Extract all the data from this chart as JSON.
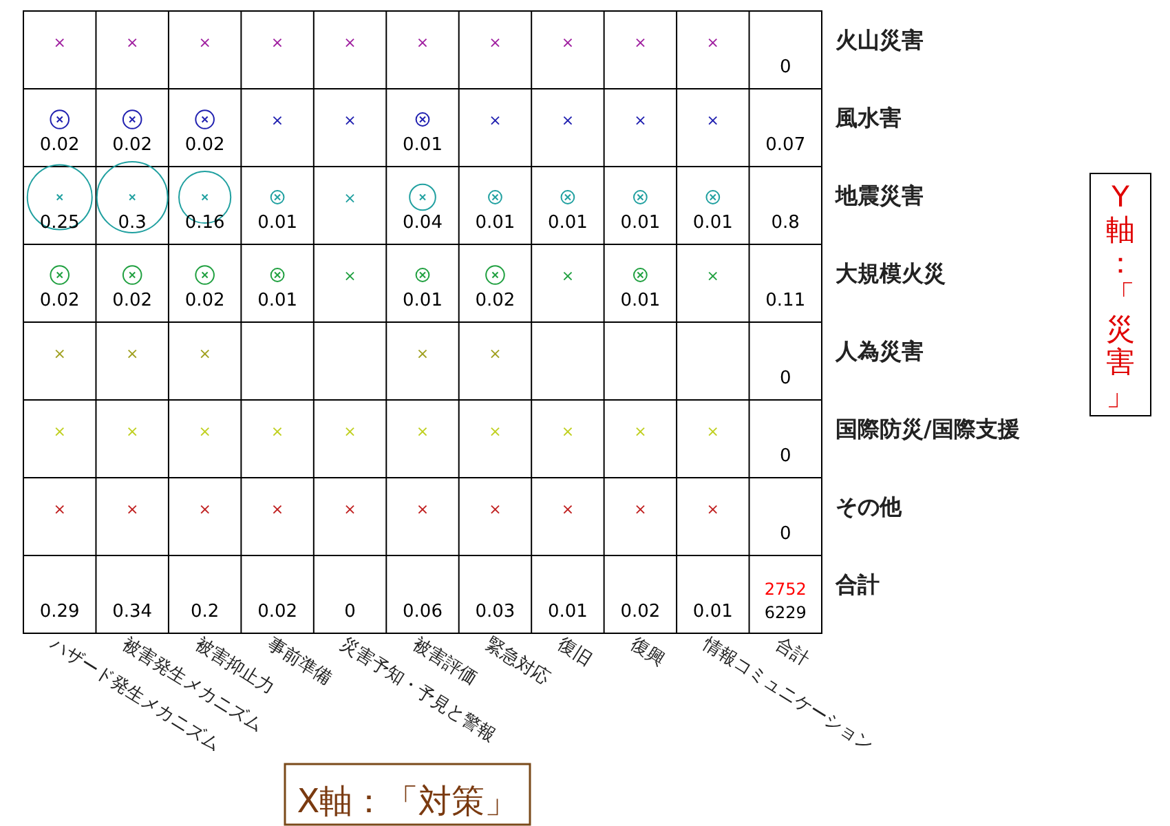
{
  "chart_data": {
    "type": "heatmap",
    "xlabel": "X軸：「対策」",
    "y2label": "Y軸：「災害」",
    "categories": [
      "ハザード発生メカニズム",
      "被害発生メカニズム",
      "被害抑止力",
      "事前準備",
      "災害予知・予見と警報",
      "被害評価",
      "緊急対応",
      "復旧",
      "復興",
      "情報コミュニケーション",
      "合計"
    ],
    "y_categories": [
      "火山災害",
      "風水害",
      "地震災害",
      "大規模火災",
      "人為災害",
      "国際防災/国際支援",
      "その他",
      "合計"
    ],
    "colors": [
      "#a020a0",
      "#2020b0",
      "#20a0a0",
      "#20a040",
      "#a0a020",
      "#c0d020",
      "#c02020",
      "#000000"
    ],
    "cells": [
      [
        null,
        null,
        null,
        null,
        null,
        null,
        null,
        null,
        null,
        null,
        0
      ],
      [
        0.02,
        0.02,
        0.02,
        null,
        null,
        0.01,
        null,
        null,
        null,
        null,
        0.07
      ],
      [
        0.25,
        0.3,
        0.16,
        0.01,
        null,
        0.04,
        0.01,
        0.01,
        0.01,
        0.01,
        0.8
      ],
      [
        0.02,
        0.02,
        0.02,
        0.01,
        null,
        0.01,
        0.02,
        null,
        0.01,
        null,
        0.11
      ],
      [
        null,
        null,
        null,
        null,
        null,
        null,
        null,
        null,
        null,
        null,
        0
      ],
      [
        null,
        null,
        null,
        null,
        null,
        null,
        null,
        null,
        null,
        null,
        0
      ],
      [
        null,
        null,
        null,
        null,
        null,
        null,
        null,
        null,
        null,
        null,
        0
      ],
      [
        0.29,
        0.34,
        0.2,
        0.02,
        0,
        0.06,
        0.03,
        0.01,
        0.02,
        0.01,
        null
      ]
    ],
    "cell_labels": [
      [
        "×",
        "×",
        "×",
        "×",
        "×",
        "×",
        "×",
        "×",
        "×",
        "×",
        "0"
      ],
      [
        "0.02",
        "0.02",
        "0.02",
        "×",
        "×",
        "0.01",
        "×",
        "×",
        "×",
        "×",
        "0.07"
      ],
      [
        "0.25",
        "0.3",
        "0.16",
        "0.01",
        "×",
        "0.04",
        "0.01",
        "0.01",
        "0.01",
        "0.01",
        "0.8"
      ],
      [
        "0.02",
        "0.02",
        "0.02",
        "0.01",
        "×",
        "0.01",
        "0.02",
        "×",
        "0.01",
        "×",
        "0.11"
      ],
      [
        "×",
        "×",
        "×",
        null,
        null,
        "×",
        "×",
        null,
        null,
        null,
        "0"
      ],
      [
        "×",
        "×",
        "×",
        "×",
        "×",
        "×",
        "×",
        "×",
        "×",
        "×",
        "0"
      ],
      [
        "×",
        "×",
        "×",
        "×",
        "×",
        "×",
        "×",
        "×",
        "×",
        "×",
        "0"
      ],
      [
        "0.29",
        "0.34",
        "0.2",
        "0.02",
        "0",
        "0.06",
        "0.03",
        "0.01",
        "0.02",
        "0.01",
        null
      ]
    ],
    "annotations": [
      "2752",
      "6229"
    ]
  }
}
